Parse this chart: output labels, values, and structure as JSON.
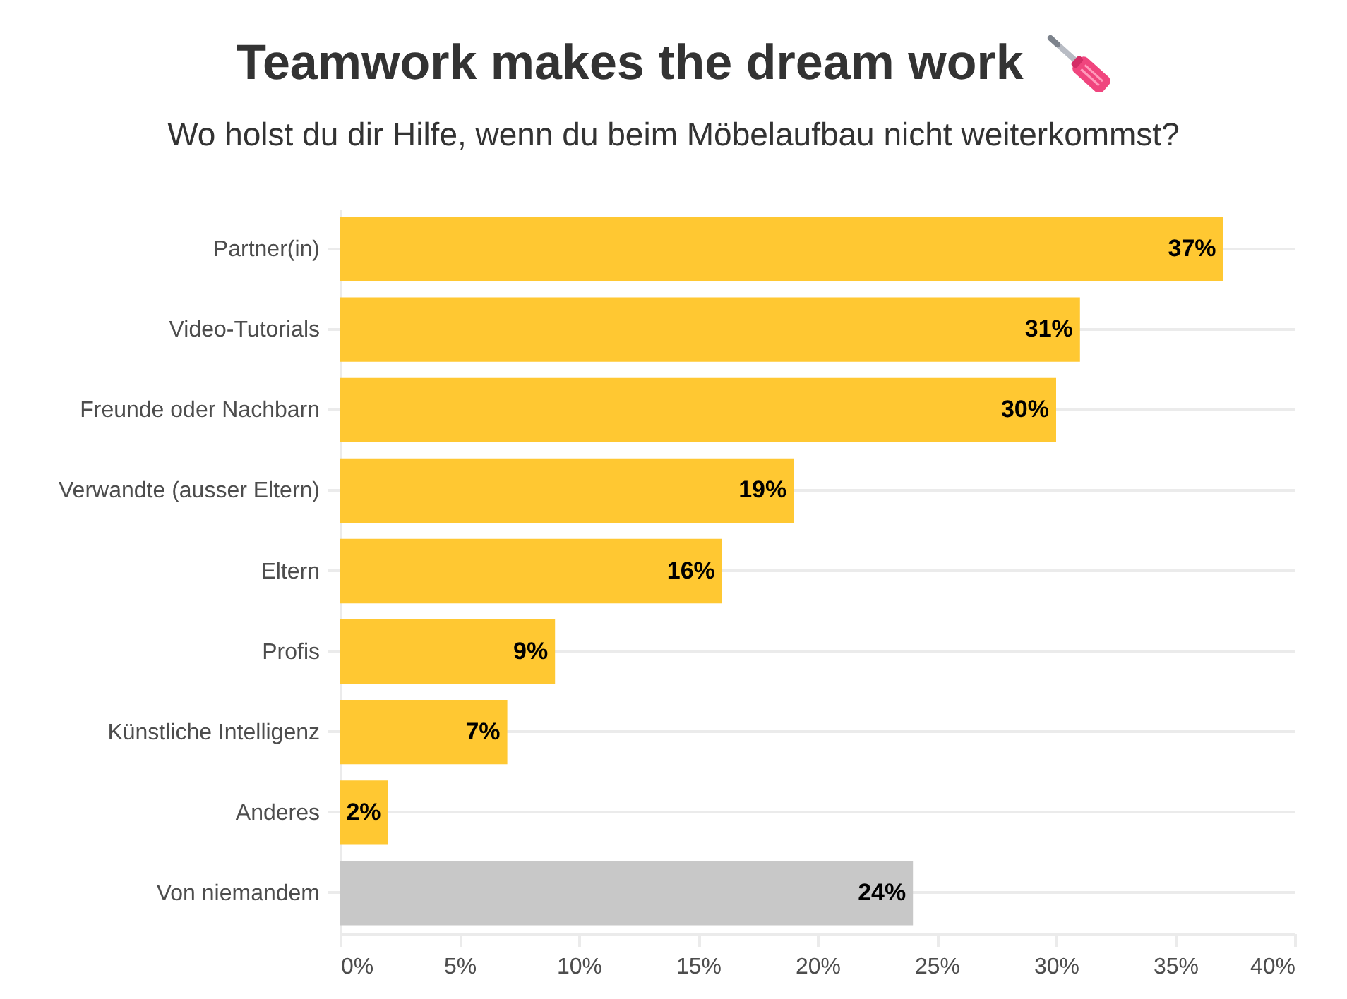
{
  "chart_data": {
    "type": "bar",
    "orientation": "horizontal",
    "title": "Teamwork makes the dream work",
    "subtitle": "Wo holst du dir Hilfe, wenn du beim Möbelaufbau nicht weiterkommst?",
    "categories": [
      "Partner(in)",
      "Video-Tutorials",
      "Freunde oder Nachbarn",
      "Verwandte (ausser Eltern)",
      "Eltern",
      "Profis",
      "Künstliche Intelligenz",
      "Anderes",
      "Von niemandem"
    ],
    "values": [
      37,
      31,
      30,
      19,
      16,
      9,
      7,
      2,
      24
    ],
    "colors": [
      "#ffc832",
      "#ffc832",
      "#ffc832",
      "#ffc832",
      "#ffc832",
      "#ffc832",
      "#ffc832",
      "#ffc832",
      "#c8c8c8"
    ],
    "value_labels": [
      "37%",
      "31%",
      "30%",
      "19%",
      "16%",
      "9%",
      "7%",
      "2%",
      "24%"
    ],
    "xlim": [
      0,
      40
    ],
    "xticks": [
      {
        "value": 0,
        "label": "0%"
      },
      {
        "value": 5,
        "label": "5%"
      },
      {
        "value": 10,
        "label": "10%"
      },
      {
        "value": 15,
        "label": "15%"
      },
      {
        "value": 20,
        "label": "20%"
      },
      {
        "value": 25,
        "label": "25%"
      },
      {
        "value": 30,
        "label": "30%"
      },
      {
        "value": 35,
        "label": "35%"
      },
      {
        "value": 40,
        "label": "40%"
      }
    ],
    "grid": "y"
  }
}
